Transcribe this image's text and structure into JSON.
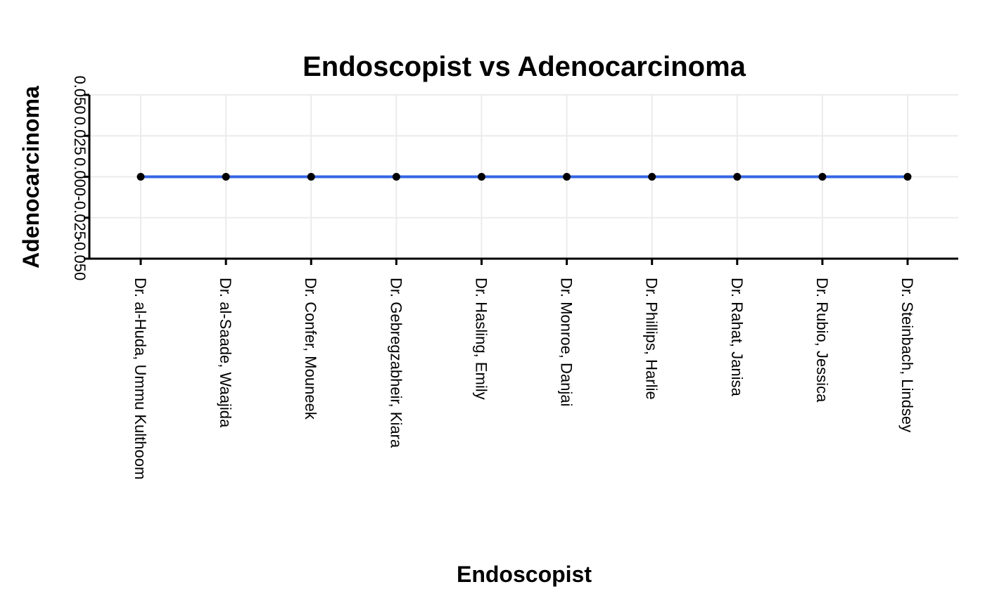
{
  "chart_data": {
    "type": "line",
    "title": "Endoscopist vs Adenocarcinoma",
    "xlabel": "Endoscopist",
    "ylabel": "Adenocarcinoma",
    "categories": [
      "Dr. al-Huda, Ummu Kulthoom",
      "Dr. al-Saade, Waajida",
      "Dr. Confer, Mouneek",
      "Dr. Gebregzabheir, Kiara",
      "Dr. Hasling, Emily",
      "Dr. Monroe, Danjai",
      "Dr. Phillips, Harlie",
      "Dr. Rahat, Janisa",
      "Dr. Rubio, Jessica",
      "Dr. Steinbach, Lindsey"
    ],
    "series": [
      {
        "values": [
          0,
          0,
          0,
          0,
          0,
          0,
          0,
          0,
          0,
          0
        ]
      }
    ],
    "yticks": [
      -0.05,
      -0.025,
      0.0,
      0.025,
      0.05
    ],
    "ytick_labels": [
      "-0.050",
      "-0.025",
      "0.000",
      "0.025",
      "0.050"
    ],
    "ylim": [
      -0.05,
      0.05
    ],
    "grid": true,
    "legend": "none",
    "colors": {
      "line": "#3366e6",
      "point": "#000000"
    }
  }
}
